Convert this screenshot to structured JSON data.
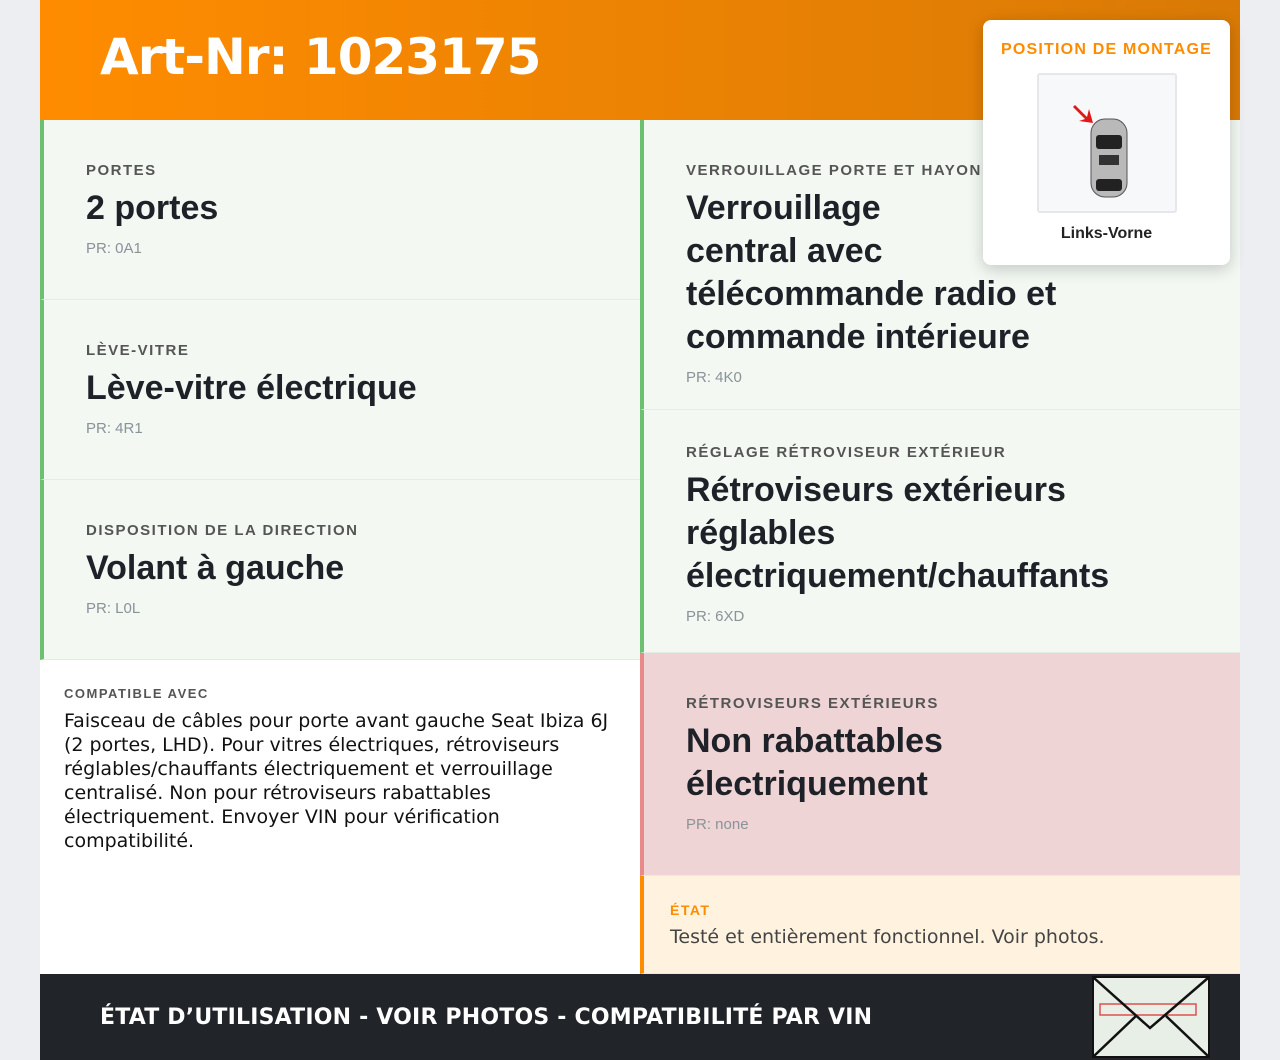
{
  "header": {
    "title": "Art-Nr: 1023175"
  },
  "left_cells": [
    {
      "label": "Portes",
      "value": "2 portes",
      "pr": "PR: 0A1"
    },
    {
      "label": "Lève-vitre",
      "value": "Lève-vitre électrique",
      "pr": "PR: 4R1"
    },
    {
      "label": "Disposition de la direction",
      "value": "Volant à gauche",
      "pr": "PR: L0L"
    }
  ],
  "right_cells": [
    {
      "label": "Verrouillage porte et hayon",
      "value": "Verrouillage central avec télécommande radio et commande intérieure",
      "pr": "PR: 4K0"
    },
    {
      "label": "Réglage rétroviseur extérieur",
      "value": "Rétroviseurs extérieurs réglables électriquement/chauffants",
      "pr": "PR: 6XD"
    },
    {
      "label": "Rétroviseurs extérieurs",
      "value": "Non rabattables électriquement",
      "pr": "PR: none"
    }
  ],
  "etat": {
    "label": "État",
    "value": "Testé et entièrement fonctionnel. Voir photos."
  },
  "compat": {
    "label": "COMPATIBLE AVEC",
    "text": "Faisceau de câbles pour porte avant gauche Seat Ibiza 6J (2 portes, LHD). Pour vitres électriques, rétroviseurs réglables/chauffants électriquement et verrouillage centralisé. Non pour rétroviseurs rabattables électriquement. Envoyer VIN pour vérification compatibilité."
  },
  "footer": {
    "text": "ÉTAT D’UTILISATION - VOIR PHOTOS - COMPATIBILITÉ PAR VIN"
  },
  "popup": {
    "label": "POSITION DE MONTAGE",
    "value": "Links-Vorne"
  },
  "colors": {
    "accent": "#ff8c00",
    "ok": "#6cc070",
    "bad": "#e88a8a",
    "footer": "#212529"
  }
}
